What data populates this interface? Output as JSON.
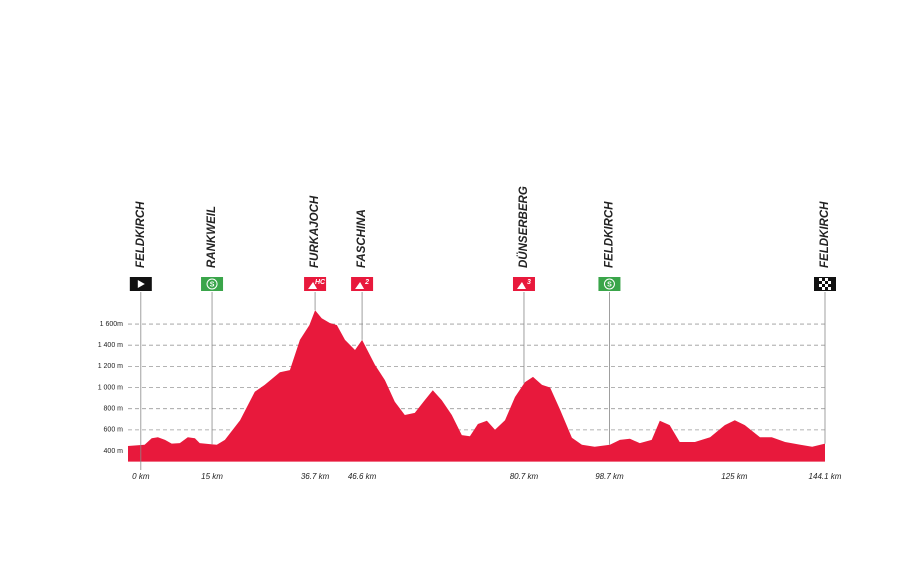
{
  "chart_data": {
    "type": "area",
    "color": "#e8193c",
    "grid": true,
    "x": [
      -2.7,
      0.8,
      2.3,
      3.6,
      5.1,
      6.5,
      8.2,
      9.9,
      11.4,
      12.4,
      14.5,
      16.0,
      17.7,
      20.9,
      24.0,
      26.1,
      29.3,
      31.4,
      33.5,
      35.5,
      36.7,
      38.1,
      39.8,
      41.3,
      43.0,
      45.1,
      46.6,
      49.3,
      51.4,
      53.5,
      55.6,
      57.7,
      59.8,
      61.5,
      63.4,
      65.5,
      67.6,
      69.3,
      71.0,
      72.9,
      74.6,
      76.7,
      78.8,
      80.9,
      82.6,
      84.5,
      86.2,
      88.3,
      90.8,
      92.9,
      95.6,
      98.8,
      100.9,
      103.0,
      105.1,
      107.6,
      109.3,
      111.4,
      113.5,
      116.7,
      119.9,
      123.0,
      125.1,
      127.2,
      130.4,
      132.9,
      135.7,
      138.9,
      141.4,
      144.1
    ],
    "y": [
      447,
      460,
      520,
      530,
      505,
      470,
      475,
      530,
      520,
      475,
      465,
      460,
      505,
      690,
      960,
      1025,
      1145,
      1165,
      1450,
      1590,
      1730,
      1655,
      1610,
      1590,
      1450,
      1355,
      1450,
      1215,
      1070,
      865,
      740,
      760,
      880,
      975,
      880,
      740,
      550,
      540,
      655,
      685,
      600,
      690,
      910,
      1050,
      1100,
      1025,
      1000,
      790,
      525,
      460,
      440,
      460,
      505,
      515,
      475,
      505,
      685,
      645,
      485,
      485,
      530,
      645,
      690,
      645,
      530,
      530,
      485,
      460,
      440,
      470
    ],
    "xlim": [
      -2.7,
      144.1
    ],
    "ylim": [
      300,
      1700
    ],
    "yticks": [
      {
        "value": 400,
        "label": "400 m"
      },
      {
        "value": 600,
        "label": "600 m"
      },
      {
        "value": 800,
        "label": "800 m"
      },
      {
        "value": 1000,
        "label": "1 000 m"
      },
      {
        "value": 1200,
        "label": "1 200 m"
      },
      {
        "value": 1400,
        "label": "1 400 m"
      },
      {
        "value": 1600,
        "label": "1 600m"
      }
    ],
    "xticks": [
      {
        "value": 0,
        "label": "0 km"
      },
      {
        "value": 15,
        "label": "15 km"
      },
      {
        "value": 36.7,
        "label": "36.7 km"
      },
      {
        "value": 46.6,
        "label": "46.6 km"
      },
      {
        "value": 80.7,
        "label": "80.7 km"
      },
      {
        "value": 98.7,
        "label": "98.7 km"
      },
      {
        "value": 125,
        "label": "125 km"
      },
      {
        "value": 144.1,
        "label": "144.1 km"
      }
    ],
    "markers": [
      {
        "name": "FELDKIRCH",
        "tick": 0,
        "kind": "start",
        "color": "#111111"
      },
      {
        "name": "RANKWEIL",
        "tick": 1,
        "kind": "sprint",
        "text": "S",
        "color": "#3aa54a"
      },
      {
        "name": "FURKAJOCH",
        "tick": 2,
        "kind": "climb",
        "text": "HC",
        "color": "#e8193c"
      },
      {
        "name": "FASCHINA",
        "tick": 3,
        "kind": "climb",
        "text": "2",
        "color": "#e8193c"
      },
      {
        "name": "DÜNSERBERG",
        "tick": 4,
        "kind": "climb",
        "text": "3",
        "color": "#e8193c"
      },
      {
        "name": "FELDKIRCH",
        "tick": 5,
        "kind": "sprint",
        "text": "S",
        "color": "#3aa54a"
      },
      {
        "name": "FELDKIRCH",
        "tick": 7,
        "kind": "finish",
        "color": "#111111"
      }
    ]
  }
}
